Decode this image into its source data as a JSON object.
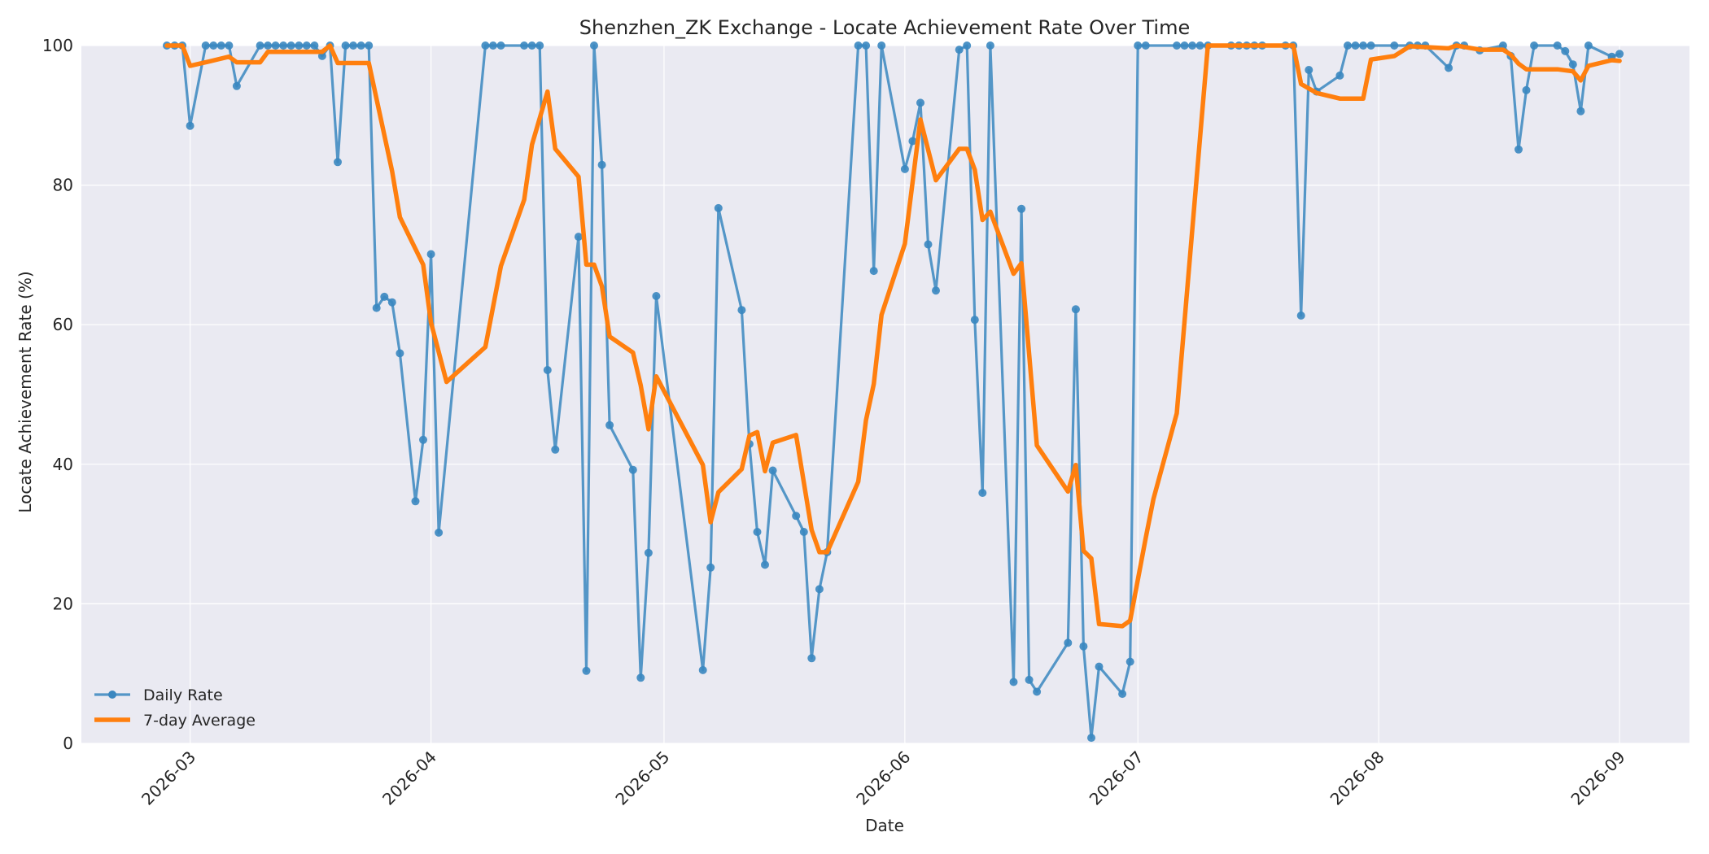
{
  "chart_data": {
    "type": "line",
    "title": "Shenzhen_ZK Exchange - Locate Achievement Rate Over Time",
    "xlabel": "Date",
    "ylabel": "Locate Achievement Rate (%)",
    "x_axis": {
      "scale": "date",
      "range": [
        "2026-02-15",
        "2026-09-10"
      ],
      "ticks": [
        "2026-03-01",
        "2026-04-01",
        "2026-05-01",
        "2026-06-01",
        "2026-07-01",
        "2026-08-01",
        "2026-09-01"
      ],
      "tick_labels": [
        "2026-03",
        "2026-04",
        "2026-05",
        "2026-06",
        "2026-07",
        "2026-08",
        "2026-09"
      ],
      "tick_rotation_deg": -45
    },
    "y_axis": {
      "range": [
        0,
        100
      ],
      "ticks": [
        0,
        20,
        40,
        60,
        80,
        100
      ],
      "tick_labels": [
        "0",
        "20",
        "40",
        "60",
        "80",
        "100"
      ]
    },
    "grid": true,
    "background_color": "#eaeaf2",
    "grid_color": "#ffffff",
    "legend": {
      "position": "lower-left",
      "entries": [
        "Daily Rate",
        "7-day Average"
      ]
    },
    "series": [
      {
        "name": "Daily Rate",
        "color": "#3a87c0",
        "style": "line-with-markers",
        "points": [
          [
            "2026-02-26",
            100
          ],
          [
            "2026-02-27",
            100
          ],
          [
            "2026-02-28",
            100
          ],
          [
            "2026-03-01",
            88.5
          ],
          [
            "2026-03-03",
            100
          ],
          [
            "2026-03-04",
            100
          ],
          [
            "2026-03-05",
            100
          ],
          [
            "2026-03-06",
            100
          ],
          [
            "2026-03-07",
            94.2
          ],
          [
            "2026-03-10",
            100
          ],
          [
            "2026-03-11",
            100
          ],
          [
            "2026-03-12",
            100
          ],
          [
            "2026-03-13",
            100
          ],
          [
            "2026-03-14",
            100
          ],
          [
            "2026-03-15",
            100
          ],
          [
            "2026-03-16",
            100
          ],
          [
            "2026-03-17",
            100
          ],
          [
            "2026-03-18",
            98.5
          ],
          [
            "2026-03-19",
            100
          ],
          [
            "2026-03-20",
            83.3
          ],
          [
            "2026-03-21",
            100
          ],
          [
            "2026-03-22",
            100
          ],
          [
            "2026-03-23",
            100
          ],
          [
            "2026-03-24",
            100
          ],
          [
            "2026-03-25",
            62.4
          ],
          [
            "2026-03-26",
            64
          ],
          [
            "2026-03-27",
            63.2
          ],
          [
            "2026-03-28",
            55.9
          ],
          [
            "2026-03-30",
            34.7
          ],
          [
            "2026-03-31",
            43.5
          ],
          [
            "2026-04-01",
            70.1
          ],
          [
            "2026-04-02",
            30.2
          ],
          [
            "2026-04-08",
            100
          ],
          [
            "2026-04-09",
            100
          ],
          [
            "2026-04-10",
            100
          ],
          [
            "2026-04-13",
            100
          ],
          [
            "2026-04-14",
            100
          ],
          [
            "2026-04-15",
            100
          ],
          [
            "2026-04-16",
            53.5
          ],
          [
            "2026-04-17",
            42.1
          ],
          [
            "2026-04-20",
            72.6
          ],
          [
            "2026-04-21",
            10.4
          ],
          [
            "2026-04-22",
            100
          ],
          [
            "2026-04-23",
            82.9
          ],
          [
            "2026-04-24",
            45.6
          ],
          [
            "2026-04-27",
            39.2
          ],
          [
            "2026-04-28",
            9.4
          ],
          [
            "2026-04-29",
            27.3
          ],
          [
            "2026-04-30",
            64.1
          ],
          [
            "2026-05-06",
            10.5
          ],
          [
            "2026-05-07",
            25.2
          ],
          [
            "2026-05-08",
            76.7
          ],
          [
            "2026-05-11",
            62.1
          ],
          [
            "2026-05-12",
            42.9
          ],
          [
            "2026-05-13",
            30.3
          ],
          [
            "2026-05-14",
            25.6
          ],
          [
            "2026-05-15",
            39.1
          ],
          [
            "2026-05-18",
            32.6
          ],
          [
            "2026-05-19",
            30.3
          ],
          [
            "2026-05-20",
            12.2
          ],
          [
            "2026-05-21",
            22.1
          ],
          [
            "2026-05-22",
            27.4
          ],
          [
            "2026-05-26",
            100
          ],
          [
            "2026-05-27",
            100
          ],
          [
            "2026-05-28",
            67.7
          ],
          [
            "2026-05-29",
            100
          ],
          [
            "2026-06-01",
            82.3
          ],
          [
            "2026-06-02",
            86.3
          ],
          [
            "2026-06-03",
            91.8
          ],
          [
            "2026-06-04",
            71.5
          ],
          [
            "2026-06-05",
            64.9
          ],
          [
            "2026-06-08",
            99.4
          ],
          [
            "2026-06-09",
            100
          ],
          [
            "2026-06-10",
            60.7
          ],
          [
            "2026-06-11",
            35.9
          ],
          [
            "2026-06-12",
            100
          ],
          [
            "2026-06-15",
            8.8
          ],
          [
            "2026-06-16",
            76.6
          ],
          [
            "2026-06-17",
            9.1
          ],
          [
            "2026-06-18",
            7.4
          ],
          [
            "2026-06-22",
            14.4
          ],
          [
            "2026-06-23",
            62.2
          ],
          [
            "2026-06-24",
            13.9
          ],
          [
            "2026-06-25",
            0.8
          ],
          [
            "2026-06-26",
            11
          ],
          [
            "2026-06-29",
            7.1
          ],
          [
            "2026-06-30",
            11.7
          ],
          [
            "2026-07-01",
            100
          ],
          [
            "2026-07-02",
            100
          ],
          [
            "2026-07-06",
            100
          ],
          [
            "2026-07-07",
            100
          ],
          [
            "2026-07-08",
            100
          ],
          [
            "2026-07-09",
            100
          ],
          [
            "2026-07-10",
            100
          ],
          [
            "2026-07-13",
            100
          ],
          [
            "2026-07-14",
            100
          ],
          [
            "2026-07-15",
            100
          ],
          [
            "2026-07-16",
            100
          ],
          [
            "2026-07-17",
            100
          ],
          [
            "2026-07-20",
            100
          ],
          [
            "2026-07-21",
            100
          ],
          [
            "2026-07-22",
            61.3
          ],
          [
            "2026-07-23",
            96.5
          ],
          [
            "2026-07-24",
            93.4
          ],
          [
            "2026-07-27",
            95.7
          ],
          [
            "2026-07-28",
            100
          ],
          [
            "2026-07-29",
            100
          ],
          [
            "2026-07-30",
            100
          ],
          [
            "2026-07-31",
            100
          ],
          [
            "2026-08-03",
            100
          ],
          [
            "2026-08-05",
            100
          ],
          [
            "2026-08-06",
            100
          ],
          [
            "2026-08-07",
            100
          ],
          [
            "2026-08-10",
            96.8
          ],
          [
            "2026-08-11",
            100
          ],
          [
            "2026-08-12",
            100
          ],
          [
            "2026-08-14",
            99.3
          ],
          [
            "2026-08-17",
            100
          ],
          [
            "2026-08-18",
            98.5
          ],
          [
            "2026-08-19",
            85.1
          ],
          [
            "2026-08-20",
            93.6
          ],
          [
            "2026-08-21",
            100
          ],
          [
            "2026-08-24",
            100
          ],
          [
            "2026-08-25",
            99.2
          ],
          [
            "2026-08-26",
            97.3
          ],
          [
            "2026-08-27",
            90.6
          ],
          [
            "2026-08-28",
            100
          ],
          [
            "2026-08-31",
            98.4
          ],
          [
            "2026-09-01",
            98.8
          ]
        ]
      },
      {
        "name": "7-day Average",
        "color": "#ff7f0e",
        "style": "line",
        "points": [
          [
            "2026-02-26",
            100
          ],
          [
            "2026-02-27",
            100
          ],
          [
            "2026-02-28",
            100
          ],
          [
            "2026-03-01",
            97.1
          ],
          [
            "2026-03-03",
            97.6
          ],
          [
            "2026-03-06",
            98.4
          ],
          [
            "2026-03-07",
            97.6
          ],
          [
            "2026-03-10",
            97.6
          ],
          [
            "2026-03-11",
            99.1
          ],
          [
            "2026-03-18",
            99.1
          ],
          [
            "2026-03-19",
            100
          ],
          [
            "2026-03-20",
            97.5
          ],
          [
            "2026-03-24",
            97.5
          ],
          [
            "2026-03-27",
            82
          ],
          [
            "2026-03-28",
            75.4
          ],
          [
            "2026-03-31",
            68.6
          ],
          [
            "2026-04-01",
            60.3
          ],
          [
            "2026-04-03",
            51.8
          ],
          [
            "2026-04-08",
            56.8
          ],
          [
            "2026-04-10",
            68.4
          ],
          [
            "2026-04-13",
            77.9
          ],
          [
            "2026-04-14",
            85.8
          ],
          [
            "2026-04-16",
            93.4
          ],
          [
            "2026-04-17",
            85.2
          ],
          [
            "2026-04-20",
            81.2
          ],
          [
            "2026-04-21",
            68.6
          ],
          [
            "2026-04-22",
            68.6
          ],
          [
            "2026-04-23",
            65.5
          ],
          [
            "2026-04-24",
            58.3
          ],
          [
            "2026-04-27",
            56
          ],
          [
            "2026-04-28",
            51.3
          ],
          [
            "2026-04-29",
            45
          ],
          [
            "2026-04-30",
            52.6
          ],
          [
            "2026-05-06",
            39.9
          ],
          [
            "2026-05-07",
            31.7
          ],
          [
            "2026-05-08",
            36
          ],
          [
            "2026-05-11",
            39.3
          ],
          [
            "2026-05-12",
            44.1
          ],
          [
            "2026-05-13",
            44.6
          ],
          [
            "2026-05-14",
            39
          ],
          [
            "2026-05-15",
            43.1
          ],
          [
            "2026-05-18",
            44.2
          ],
          [
            "2026-05-20",
            30.6
          ],
          [
            "2026-05-21",
            27.4
          ],
          [
            "2026-05-22",
            27.4
          ],
          [
            "2026-05-26",
            37.5
          ],
          [
            "2026-05-27",
            46.3
          ],
          [
            "2026-05-28",
            51.5
          ],
          [
            "2026-05-29",
            61.4
          ],
          [
            "2026-06-01",
            71.6
          ],
          [
            "2026-06-03",
            89.4
          ],
          [
            "2026-06-05",
            80.7
          ],
          [
            "2026-06-08",
            85.2
          ],
          [
            "2026-06-09",
            85.2
          ],
          [
            "2026-06-10",
            82.2
          ],
          [
            "2026-06-11",
            75
          ],
          [
            "2026-06-12",
            76.2
          ],
          [
            "2026-06-15",
            67.3
          ],
          [
            "2026-06-16",
            68.8
          ],
          [
            "2026-06-18",
            42.7
          ],
          [
            "2026-06-22",
            36.1
          ],
          [
            "2026-06-23",
            39.9
          ],
          [
            "2026-06-24",
            27.6
          ],
          [
            "2026-06-25",
            26.5
          ],
          [
            "2026-06-26",
            17.1
          ],
          [
            "2026-06-29",
            16.8
          ],
          [
            "2026-06-30",
            17.6
          ],
          [
            "2026-07-02",
            29.4
          ],
          [
            "2026-07-03",
            35
          ],
          [
            "2026-07-06",
            47.3
          ],
          [
            "2026-07-09",
            86.8
          ],
          [
            "2026-07-10",
            100
          ],
          [
            "2026-07-21",
            100
          ],
          [
            "2026-07-22",
            94.5
          ],
          [
            "2026-07-24",
            93.2
          ],
          [
            "2026-07-27",
            92.4
          ],
          [
            "2026-07-30",
            92.4
          ],
          [
            "2026-07-31",
            98
          ],
          [
            "2026-08-03",
            98.5
          ],
          [
            "2026-08-05",
            99.9
          ],
          [
            "2026-08-10",
            99.6
          ],
          [
            "2026-08-11",
            100
          ],
          [
            "2026-08-12",
            99.8
          ],
          [
            "2026-08-14",
            99.4
          ],
          [
            "2026-08-17",
            99.4
          ],
          [
            "2026-08-18",
            98.7
          ],
          [
            "2026-08-19",
            97.4
          ],
          [
            "2026-08-20",
            96.6
          ],
          [
            "2026-08-24",
            96.6
          ],
          [
            "2026-08-26",
            96.3
          ],
          [
            "2026-08-27",
            95
          ],
          [
            "2026-08-28",
            97.1
          ],
          [
            "2026-08-31",
            97.9
          ],
          [
            "2026-09-01",
            97.8
          ]
        ]
      }
    ]
  }
}
